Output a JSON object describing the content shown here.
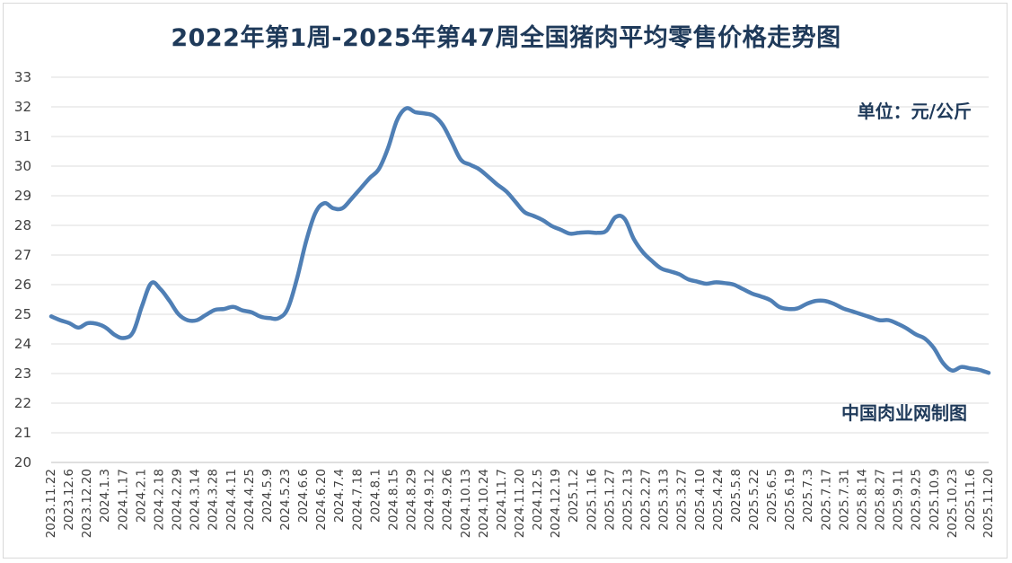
{
  "chart_data": {
    "type": "line",
    "title": "2022年第1周-2025年第47周全国猪肉平均零售价格走势图",
    "unit_label": "单位：元/公斤",
    "source_label": "中国肉业网制图",
    "xlabel": "",
    "ylabel": "",
    "ylim": [
      20,
      33
    ],
    "yticks": [
      20,
      21,
      22,
      23,
      24,
      25,
      26,
      27,
      28,
      29,
      30,
      31,
      32,
      33
    ],
    "grid": true,
    "line_color": "#4f7fb5",
    "x_tick_labels": [
      "2023.11.22",
      "2023.12.6",
      "2023.12.20",
      "2024.1.3",
      "2024.1.17",
      "2024.2.1",
      "2024.2.18",
      "2024.2.29",
      "2024.3.14",
      "2024.3.28",
      "2024.4.11",
      "2024.4.25",
      "2024.5.9",
      "2024.5.23",
      "2024.6.6",
      "2024.6.20",
      "2024.7.4",
      "2024.7.18",
      "2024.8.1",
      "2024.8.15",
      "2024.8.29",
      "2024.9.12",
      "2024.9.26",
      "2024.10.13",
      "2024.10.24",
      "2024.11.7",
      "2024.11.20",
      "2024.12.5",
      "2024.12.19",
      "2025.1.2",
      "2025.1.16",
      "2025.1.27",
      "2025.2.13",
      "2025.2.27",
      "2025.3.13",
      "2025.3.27",
      "2025.4.10",
      "2025.4.24",
      "2025.5.8",
      "2025.5.22",
      "2025.6.5",
      "2025.6.19",
      "2025.7.3",
      "2025.7.17",
      "2025.7.31",
      "2025.8.14",
      "2025.8.27",
      "2025.9.11",
      "2025.9.25",
      "2025.10.9",
      "2025.10.23",
      "2025.11.6",
      "2025.11.20"
    ],
    "series": [
      {
        "values": [
          24.93,
          24.8,
          24.7,
          24.55,
          24.7,
          24.68,
          24.55,
          24.3,
          24.2,
          24.4,
          25.3,
          26.05,
          25.85,
          25.45,
          25.0,
          24.8,
          24.8,
          24.98,
          25.15,
          25.18,
          25.25,
          25.13,
          25.07,
          24.92,
          24.87,
          24.87,
          25.2,
          26.2,
          27.45,
          28.4,
          28.75,
          28.58,
          28.58,
          28.9,
          29.25,
          29.6,
          29.9,
          30.6,
          31.55,
          31.95,
          31.82,
          31.78,
          31.7,
          31.4,
          30.82,
          30.22,
          30.05,
          29.9,
          29.65,
          29.38,
          29.15,
          28.8,
          28.45,
          28.32,
          28.18,
          27.98,
          27.85,
          27.72,
          27.75,
          27.77,
          27.75,
          27.82,
          28.28,
          28.22,
          27.55,
          27.1,
          26.8,
          26.55,
          26.45,
          26.35,
          26.18,
          26.1,
          26.03,
          26.08,
          26.05,
          26.0,
          25.85,
          25.7,
          25.6,
          25.48,
          25.25,
          25.18,
          25.2,
          25.35,
          25.45,
          25.45,
          25.35,
          25.2,
          25.1,
          25.0,
          24.9,
          24.8,
          24.8,
          24.68,
          24.52,
          24.32,
          24.18,
          23.85,
          23.35,
          23.1,
          23.22,
          23.17,
          23.12,
          23.02
        ]
      }
    ]
  }
}
